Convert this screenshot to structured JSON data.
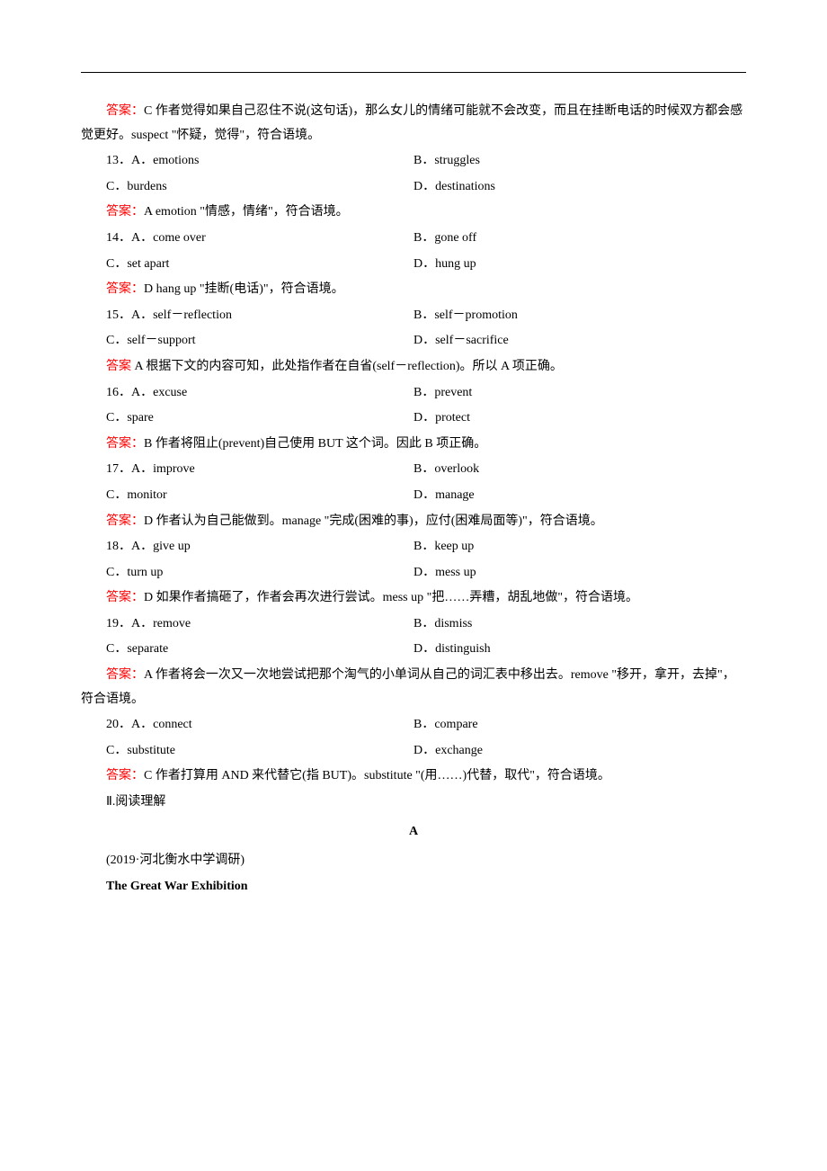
{
  "answers": {
    "a12": {
      "label": "答案：",
      "letter": "C",
      "explanation": "  作者觉得如果自己忍住不说(这句话)，那么女儿的情绪可能就不会改变，而且在挂断电话的时候双方都会感觉更好。suspect  \"怀疑，觉得\"，符合语境。"
    },
    "a13": {
      "label": "答案：",
      "letter": "A",
      "explanation": "  emotion  \"情感，情绪\"，符合语境。"
    },
    "a14": {
      "label": "答案：",
      "letter": "D",
      "explanation": "  hang up  \"挂断(电话)\"，符合语境。"
    },
    "a15": {
      "label": "答案",
      "letter": " A",
      "explanation": "  根据下文的内容可知，此处指作者在自省(self－reflection)。所以 A 项正确。"
    },
    "a16": {
      "label": "答案：",
      "letter": "B",
      "explanation": "  作者将阻止(prevent)自己使用 BUT 这个词。因此 B 项正确。"
    },
    "a17": {
      "label": "答案：",
      "letter": "D",
      "explanation": "  作者认为自己能做到。manage  \"完成(困难的事)，应付(困难局面等)\"，符合语境。"
    },
    "a18": {
      "label": "答案：",
      "letter": "D",
      "explanation": "  如果作者搞砸了，作者会再次进行尝试。mess up  \"把……弄糟，胡乱地做\"，符合语境。"
    },
    "a19": {
      "label": "答案：",
      "letter": "A",
      "explanation": "  作者将会一次又一次地尝试把那个淘气的小单词从自己的词汇表中移出去。remove  \"移开，拿开，去掉\"，符合语境。"
    },
    "a20": {
      "label": "答案：",
      "letter": "C",
      "explanation": "  作者打算用 AND 来代替它(指 BUT)。substitute  \"(用……)代替，取代\"，符合语境。"
    }
  },
  "questions": {
    "q13": {
      "num": "13．",
      "a": "A．emotions",
      "b": "B．struggles",
      "c": "C．burdens",
      "d": "D．destinations"
    },
    "q14": {
      "num": "14．",
      "a": "A．come over",
      "b": "B．gone off",
      "c": "C．set apart",
      "d": "D．hung up"
    },
    "q15": {
      "num": "15．",
      "a": "A．self－reflection",
      "b": "B．self－promotion",
      "c": "C．self－support",
      "d": "D．self－sacrifice"
    },
    "q16": {
      "num": "16．",
      "a": "A．excuse",
      "b": "B．prevent",
      "c": "C．spare",
      "d": "D．protect"
    },
    "q17": {
      "num": "17．",
      "a": "A．improve",
      "b": "B．overlook",
      "c": "C．monitor",
      "d": "D．manage"
    },
    "q18": {
      "num": "18．",
      "a": "A．give up",
      "b": "B．keep up",
      "c": "C．turn up",
      "d": "D．mess up"
    },
    "q19": {
      "num": "19．",
      "a": "A．remove",
      "b": "B．dismiss",
      "c": "C．separate",
      "d": "D．distinguish"
    },
    "q20": {
      "num": "20．",
      "a": "A．connect",
      "b": "B．compare",
      "c": "C．substitute",
      "d": "D．exchange"
    }
  },
  "section2": {
    "title": "Ⅱ.阅读理解",
    "passageLabel": "A",
    "source": "(2019·河北衡水中学调研)",
    "heading": "The Great War Exhibition"
  },
  "colors": {
    "answerLabel": "#ff0000",
    "text": "#000000",
    "background": "#ffffff"
  },
  "typography": {
    "fontSize": 14,
    "lineHeight": 1.9,
    "fontFamily": "SimSun"
  }
}
